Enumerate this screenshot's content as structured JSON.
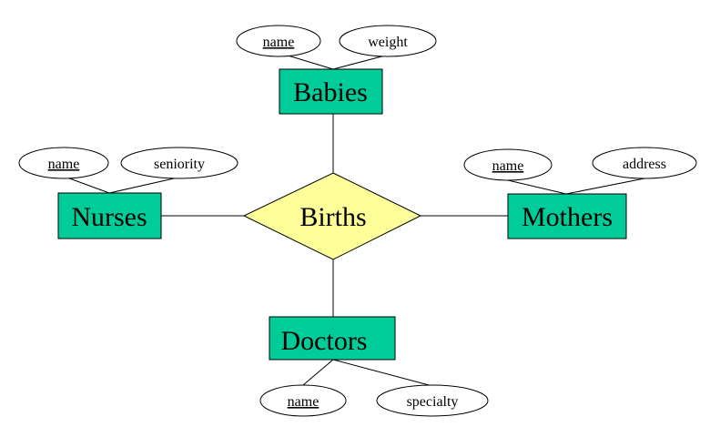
{
  "colors": {
    "entity_fill": "#00cc99",
    "relationship_fill": "#ffff99",
    "line": "#000000",
    "attribute_fill": "#ffffff"
  },
  "relationship": {
    "label": "Births"
  },
  "entities": {
    "babies": {
      "label": "Babies",
      "attributes": [
        {
          "label": "name",
          "key": true
        },
        {
          "label": "weight",
          "key": false
        }
      ]
    },
    "nurses": {
      "label": "Nurses",
      "attributes": [
        {
          "label": "name",
          "key": true
        },
        {
          "label": "seniority",
          "key": false
        }
      ]
    },
    "mothers": {
      "label": "Mothers",
      "attributes": [
        {
          "label": "name",
          "key": true
        },
        {
          "label": "address",
          "key": false
        }
      ]
    },
    "doctors": {
      "label": "Doctors",
      "attributes": [
        {
          "label": "name",
          "key": true
        },
        {
          "label": "specialty",
          "key": false
        }
      ]
    }
  }
}
